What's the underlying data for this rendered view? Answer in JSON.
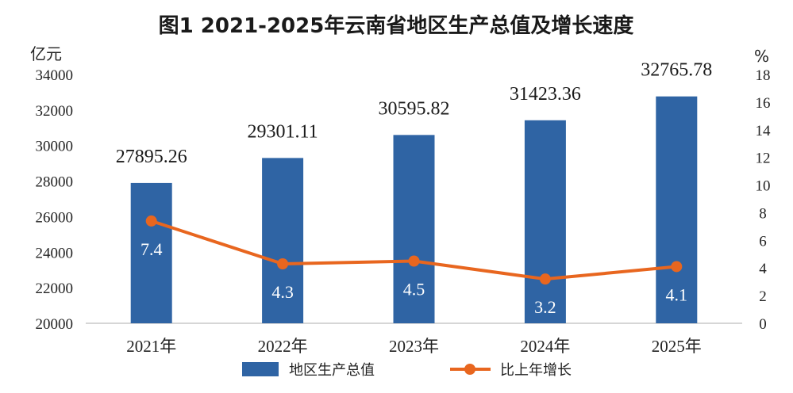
{
  "chart_data": {
    "type": "bar",
    "title": "图1  2021-2025年云南省地区生产总值及增长速度",
    "categories": [
      "2021年",
      "2022年",
      "2023年",
      "2024年",
      "2025年"
    ],
    "left_axis": {
      "unit": "亿元",
      "ylim": [
        20000,
        34000
      ],
      "ticks": [
        20000,
        22000,
        24000,
        26000,
        28000,
        30000,
        32000,
        34000
      ]
    },
    "right_axis": {
      "unit": "%",
      "ylim": [
        0,
        18
      ],
      "ticks": [
        0,
        2,
        4,
        6,
        8,
        10,
        12,
        14,
        16,
        18
      ]
    },
    "series": [
      {
        "name": "地区生产总值",
        "type": "bar",
        "axis": "left",
        "color": "#2f64a4",
        "values": [
          27895.26,
          29301.11,
          30595.82,
          31423.36,
          32765.78
        ],
        "labels": [
          "27895.26",
          "29301.11",
          "30595.82",
          "31423.36",
          "32765.78"
        ]
      },
      {
        "name": "比上年增长",
        "type": "line",
        "axis": "right",
        "color": "#e8661f",
        "values": [
          7.4,
          4.3,
          4.5,
          3.2,
          4.1
        ],
        "labels": [
          "7.4",
          "4.3",
          "4.5",
          "3.2",
          "4.1"
        ]
      }
    ],
    "grid": false,
    "legend_position": "bottom"
  }
}
